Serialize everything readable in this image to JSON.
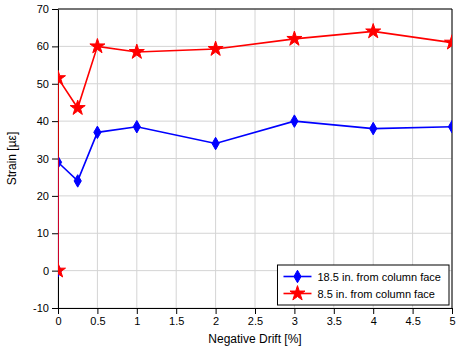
{
  "chart_data": {
    "type": "line",
    "x_label": "Negative Drift [%]",
    "y_label": "Strain [µε]",
    "x": [
      0,
      0,
      0.25,
      0.5,
      1,
      2,
      3,
      4,
      5
    ],
    "series": [
      {
        "name": "18.5 in. from column face",
        "color": "#0000ff",
        "marker": "diamond",
        "line_style": "solid",
        "values": [
          0,
          29,
          24,
          37,
          38.5,
          34,
          40,
          38,
          38.5
        ]
      },
      {
        "name": "8.5 in. from column face",
        "color": "#ff0000",
        "marker": "star",
        "line_style": "solid",
        "values": [
          0,
          51.5,
          43.5,
          60,
          58.5,
          59.3,
          62,
          64,
          61
        ]
      }
    ],
    "xlim": [
      0,
      5
    ],
    "xticks": [
      0,
      0.5,
      1,
      1.5,
      2,
      2.5,
      3,
      3.5,
      4,
      4.5,
      5
    ],
    "ylim": [
      -10,
      70
    ],
    "yticks": [
      -10,
      0,
      10,
      20,
      30,
      40,
      50,
      60,
      70
    ],
    "grid": true,
    "legend": "lower right"
  }
}
